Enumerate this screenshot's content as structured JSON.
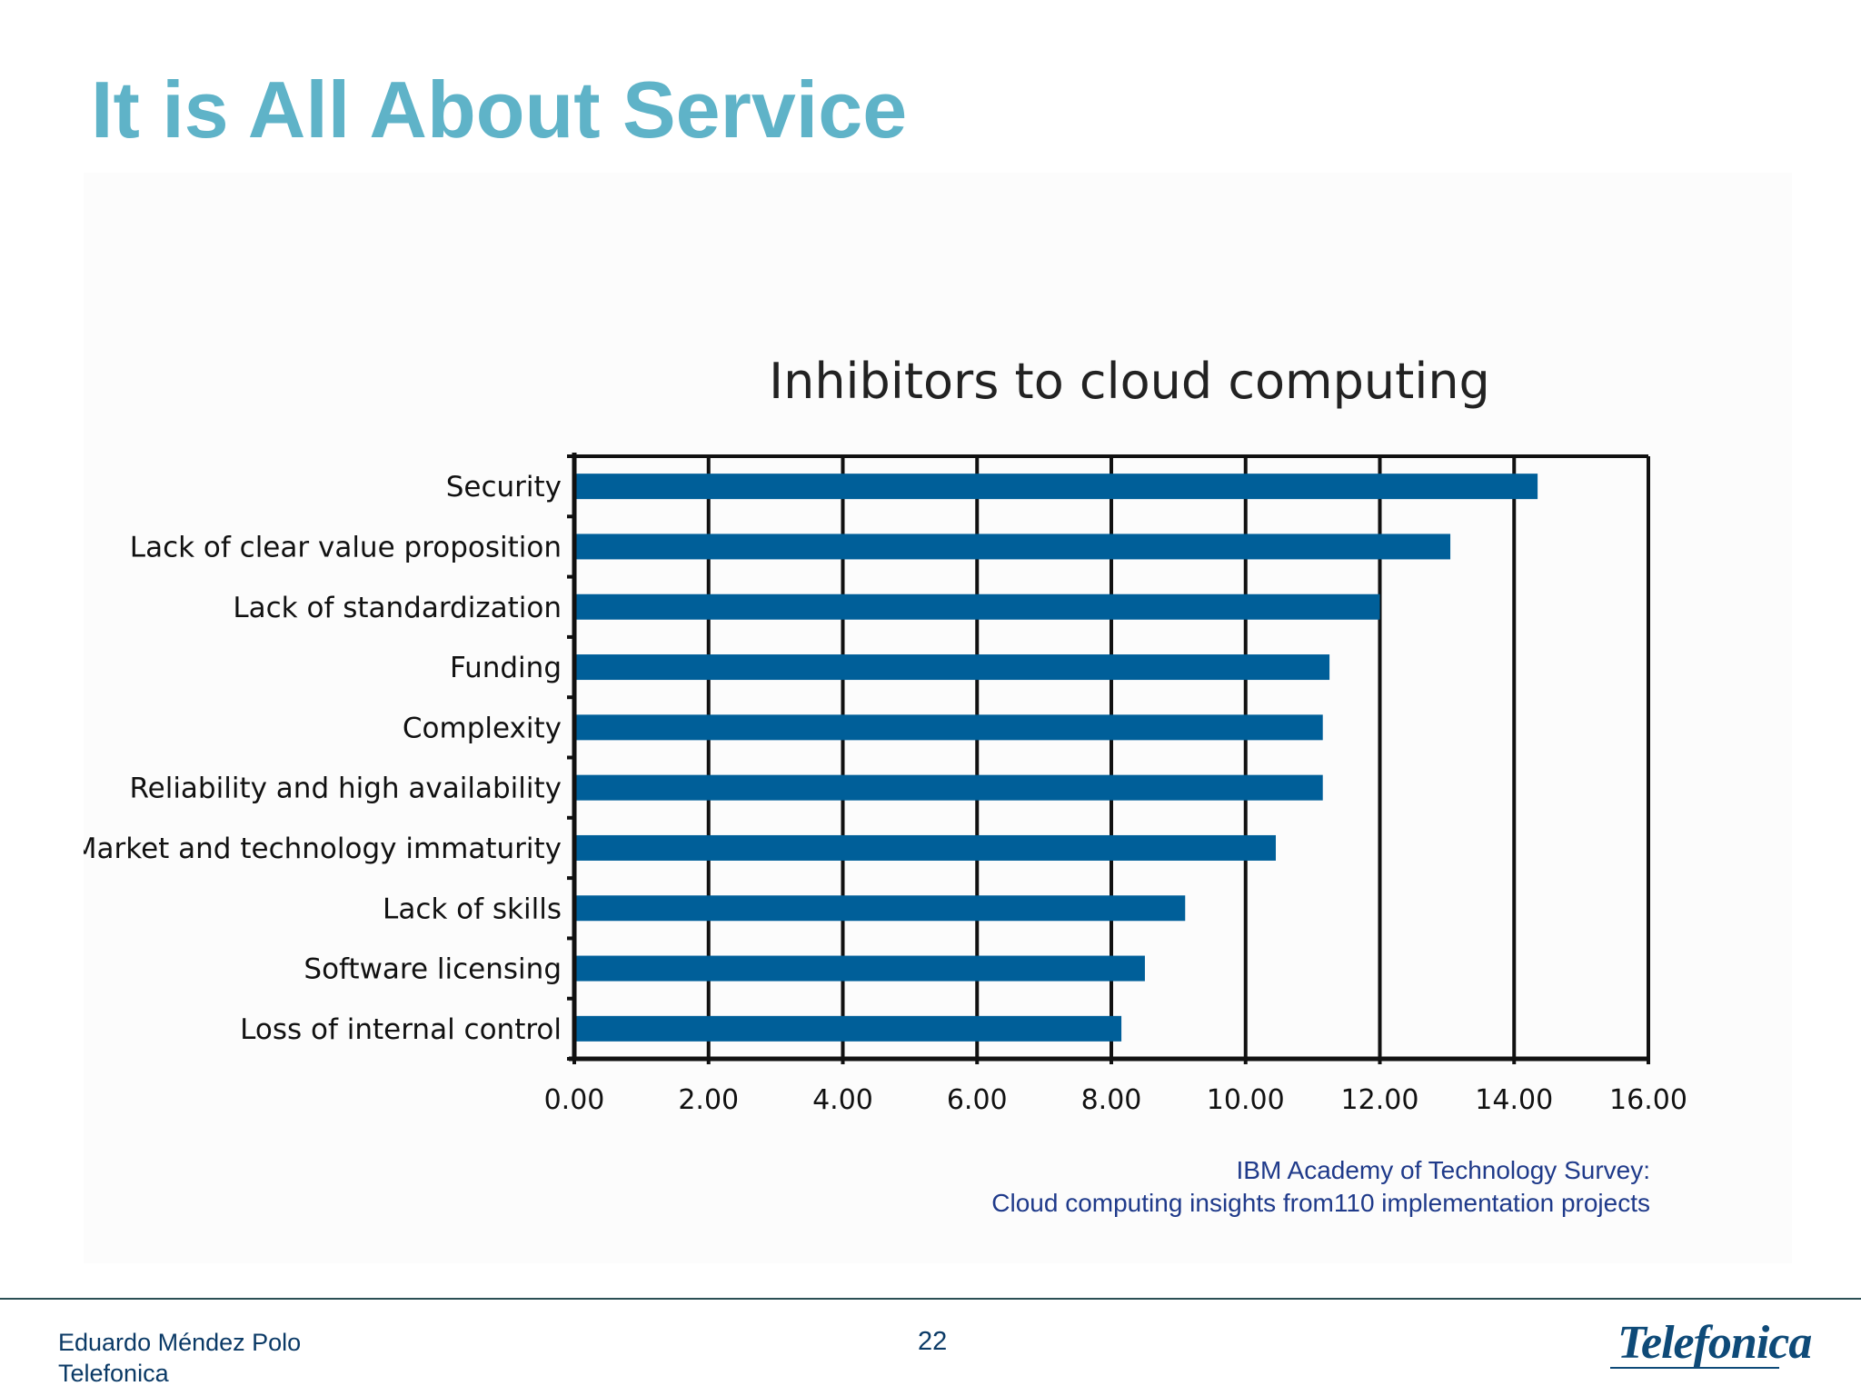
{
  "slide": {
    "title": "It is All About Service",
    "source_line1": "IBM Academy of Technology Survey:",
    "source_line2": "Cloud computing insights from110 implementation projects"
  },
  "footer": {
    "author": "Eduardo Méndez Polo",
    "company": "Telefonica",
    "page": "22",
    "logo_text": "Telefonica"
  },
  "colors": {
    "title": "#5fb3c8",
    "bar": "#005f99",
    "text": "#0b3a66"
  },
  "chart_data": {
    "type": "bar",
    "orientation": "horizontal",
    "title": "Inhibitors to cloud computing",
    "categories": [
      "Security",
      "Lack of clear value proposition",
      "Lack of standardization",
      "Funding",
      "Complexity",
      "Reliability and high availability",
      "Market and technology immaturity",
      "Lack of skills",
      "Software licensing",
      "Loss of internal control"
    ],
    "values": [
      14.35,
      13.05,
      12.0,
      11.25,
      11.15,
      11.15,
      10.45,
      9.1,
      8.5,
      8.15
    ],
    "xlim": [
      0,
      16
    ],
    "xticks": [
      "0.00",
      "2.00",
      "4.00",
      "6.00",
      "8.00",
      "10.00",
      "12.00",
      "14.00",
      "16.00"
    ],
    "grid": "vertical",
    "legend": "none"
  }
}
